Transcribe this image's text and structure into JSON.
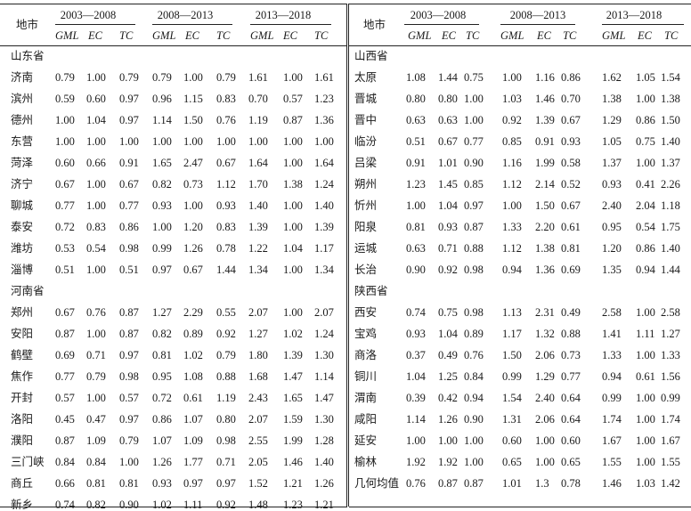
{
  "headers": {
    "city": "地市",
    "groups": [
      "2003—2008",
      "2008—2013",
      "2013—2018"
    ],
    "subs": [
      "GML",
      "EC",
      "TC"
    ]
  },
  "left": {
    "rows": [
      {
        "type": "prov",
        "name": "山东省"
      },
      {
        "type": "row",
        "city": "济南",
        "v": [
          "0.79",
          "1.00",
          "0.79",
          "0.79",
          "1.00",
          "0.79",
          "1.61",
          "1.00",
          "1.61"
        ]
      },
      {
        "type": "row",
        "city": "滨州",
        "v": [
          "0.59",
          "0.60",
          "0.97",
          "0.96",
          "1.15",
          "0.83",
          "0.70",
          "0.57",
          "1.23"
        ]
      },
      {
        "type": "row",
        "city": "德州",
        "v": [
          "1.00",
          "1.04",
          "0.97",
          "1.14",
          "1.50",
          "0.76",
          "1.19",
          "0.87",
          "1.36"
        ]
      },
      {
        "type": "row",
        "city": "东营",
        "v": [
          "1.00",
          "1.00",
          "1.00",
          "1.00",
          "1.00",
          "1.00",
          "1.00",
          "1.00",
          "1.00"
        ]
      },
      {
        "type": "row",
        "city": "菏泽",
        "v": [
          "0.60",
          "0.66",
          "0.91",
          "1.65",
          "2.47",
          "0.67",
          "1.64",
          "1.00",
          "1.64"
        ]
      },
      {
        "type": "row",
        "city": "济宁",
        "v": [
          "0.67",
          "1.00",
          "0.67",
          "0.82",
          "0.73",
          "1.12",
          "1.70",
          "1.38",
          "1.24"
        ]
      },
      {
        "type": "row",
        "city": "聊城",
        "v": [
          "0.77",
          "1.00",
          "0.77",
          "0.93",
          "1.00",
          "0.93",
          "1.40",
          "1.00",
          "1.40"
        ]
      },
      {
        "type": "row",
        "city": "泰安",
        "v": [
          "0.72",
          "0.83",
          "0.86",
          "1.00",
          "1.20",
          "0.83",
          "1.39",
          "1.00",
          "1.39"
        ]
      },
      {
        "type": "row",
        "city": "潍坊",
        "v": [
          "0.53",
          "0.54",
          "0.98",
          "0.99",
          "1.26",
          "0.78",
          "1.22",
          "1.04",
          "1.17"
        ]
      },
      {
        "type": "row",
        "city": "淄博",
        "v": [
          "0.51",
          "1.00",
          "0.51",
          "0.97",
          "0.67",
          "1.44",
          "1.34",
          "1.00",
          "1.34"
        ]
      },
      {
        "type": "prov",
        "name": "河南省"
      },
      {
        "type": "row",
        "city": "郑州",
        "v": [
          "0.67",
          "0.76",
          "0.87",
          "1.27",
          "2.29",
          "0.55",
          "2.07",
          "1.00",
          "2.07"
        ]
      },
      {
        "type": "row",
        "city": "安阳",
        "v": [
          "0.87",
          "1.00",
          "0.87",
          "0.82",
          "0.89",
          "0.92",
          "1.27",
          "1.02",
          "1.24"
        ]
      },
      {
        "type": "row",
        "city": "鹤壁",
        "v": [
          "0.69",
          "0.71",
          "0.97",
          "0.81",
          "1.02",
          "0.79",
          "1.80",
          "1.39",
          "1.30"
        ]
      },
      {
        "type": "row",
        "city": "焦作",
        "v": [
          "0.77",
          "0.79",
          "0.98",
          "0.95",
          "1.08",
          "0.88",
          "1.68",
          "1.47",
          "1.14"
        ]
      },
      {
        "type": "row",
        "city": "开封",
        "v": [
          "0.57",
          "1.00",
          "0.57",
          "0.72",
          "0.61",
          "1.19",
          "2.43",
          "1.65",
          "1.47"
        ]
      },
      {
        "type": "row",
        "city": "洛阳",
        "v": [
          "0.45",
          "0.47",
          "0.97",
          "0.86",
          "1.07",
          "0.80",
          "2.07",
          "1.59",
          "1.30"
        ]
      },
      {
        "type": "row",
        "city": "濮阳",
        "v": [
          "0.87",
          "1.09",
          "0.79",
          "1.07",
          "1.09",
          "0.98",
          "2.55",
          "1.99",
          "1.28"
        ]
      },
      {
        "type": "row",
        "city": "三门峡",
        "v": [
          "0.84",
          "0.84",
          "1.00",
          "1.26",
          "1.77",
          "0.71",
          "2.05",
          "1.46",
          "1.40"
        ]
      },
      {
        "type": "row",
        "city": "商丘",
        "v": [
          "0.66",
          "0.81",
          "0.81",
          "0.93",
          "0.97",
          "0.97",
          "1.52",
          "1.21",
          "1.26"
        ]
      },
      {
        "type": "row",
        "city": "新乡",
        "v": [
          "0.74",
          "0.82",
          "0.90",
          "1.02",
          "1.11",
          "0.92",
          "1.48",
          "1.23",
          "1.21"
        ]
      }
    ]
  },
  "right": {
    "rows": [
      {
        "type": "prov",
        "name": "山西省"
      },
      {
        "type": "row",
        "city": "太原",
        "v": [
          "1.08",
          "1.44",
          "0.75",
          "1.00",
          "1.16",
          "0.86",
          "1.62",
          "1.05",
          "1.54"
        ]
      },
      {
        "type": "row",
        "city": "晋城",
        "v": [
          "0.80",
          "0.80",
          "1.00",
          "1.03",
          "1.46",
          "0.70",
          "1.38",
          "1.00",
          "1.38"
        ]
      },
      {
        "type": "row",
        "city": "晋中",
        "v": [
          "0.63",
          "0.63",
          "1.00",
          "0.92",
          "1.39",
          "0.67",
          "1.29",
          "0.86",
          "1.50"
        ]
      },
      {
        "type": "row",
        "city": "临汾",
        "v": [
          "0.51",
          "0.67",
          "0.77",
          "0.85",
          "0.91",
          "0.93",
          "1.05",
          "0.75",
          "1.40"
        ]
      },
      {
        "type": "row",
        "city": "吕梁",
        "v": [
          "0.91",
          "1.01",
          "0.90",
          "1.16",
          "1.99",
          "0.58",
          "1.37",
          "1.00",
          "1.37"
        ]
      },
      {
        "type": "row",
        "city": "朔州",
        "v": [
          "1.23",
          "1.45",
          "0.85",
          "1.12",
          "2.14",
          "0.52",
          "0.93",
          "0.41",
          "2.26"
        ]
      },
      {
        "type": "row",
        "city": "忻州",
        "v": [
          "1.00",
          "1.04",
          "0.97",
          "1.00",
          "1.50",
          "0.67",
          "2.40",
          "2.04",
          "1.18"
        ]
      },
      {
        "type": "row",
        "city": "阳泉",
        "v": [
          "0.81",
          "0.93",
          "0.87",
          "1.33",
          "2.20",
          "0.61",
          "0.95",
          "0.54",
          "1.75"
        ]
      },
      {
        "type": "row",
        "city": "运城",
        "v": [
          "0.63",
          "0.71",
          "0.88",
          "1.12",
          "1.38",
          "0.81",
          "1.20",
          "0.86",
          "1.40"
        ]
      },
      {
        "type": "row",
        "city": "长治",
        "v": [
          "0.90",
          "0.92",
          "0.98",
          "0.94",
          "1.36",
          "0.69",
          "1.35",
          "0.94",
          "1.44"
        ]
      },
      {
        "type": "prov",
        "name": "陕西省"
      },
      {
        "type": "row",
        "city": "西安",
        "v": [
          "0.74",
          "0.75",
          "0.98",
          "1.13",
          "2.31",
          "0.49",
          "2.58",
          "1.00",
          "2.58"
        ]
      },
      {
        "type": "row",
        "city": "宝鸡",
        "v": [
          "0.93",
          "1.04",
          "0.89",
          "1.17",
          "1.32",
          "0.88",
          "1.41",
          "1.11",
          "1.27"
        ]
      },
      {
        "type": "row",
        "city": "商洛",
        "v": [
          "0.37",
          "0.49",
          "0.76",
          "1.50",
          "2.06",
          "0.73",
          "1.33",
          "1.00",
          "1.33"
        ]
      },
      {
        "type": "row",
        "city": "铜川",
        "v": [
          "1.04",
          "1.25",
          "0.84",
          "0.99",
          "1.29",
          "0.77",
          "0.94",
          "0.61",
          "1.56"
        ]
      },
      {
        "type": "row",
        "city": "渭南",
        "v": [
          "0.39",
          "0.42",
          "0.94",
          "1.54",
          "2.40",
          "0.64",
          "0.99",
          "1.00",
          "0.99"
        ]
      },
      {
        "type": "row",
        "city": "咸阳",
        "v": [
          "1.14",
          "1.26",
          "0.90",
          "1.31",
          "2.06",
          "0.64",
          "1.74",
          "1.00",
          "1.74"
        ]
      },
      {
        "type": "row",
        "city": "延安",
        "v": [
          "1.00",
          "1.00",
          "1.00",
          "0.60",
          "1.00",
          "0.60",
          "1.67",
          "1.00",
          "1.67"
        ]
      },
      {
        "type": "row",
        "city": "榆林",
        "v": [
          "1.92",
          "1.92",
          "1.00",
          "0.65",
          "1.00",
          "0.65",
          "1.55",
          "1.00",
          "1.55"
        ]
      },
      {
        "type": "row",
        "city": "几何均值",
        "v": [
          "0.76",
          "0.87",
          "0.87",
          "1.01",
          "1.3",
          "0.78",
          "1.46",
          "1.03",
          "1.42"
        ]
      }
    ]
  }
}
